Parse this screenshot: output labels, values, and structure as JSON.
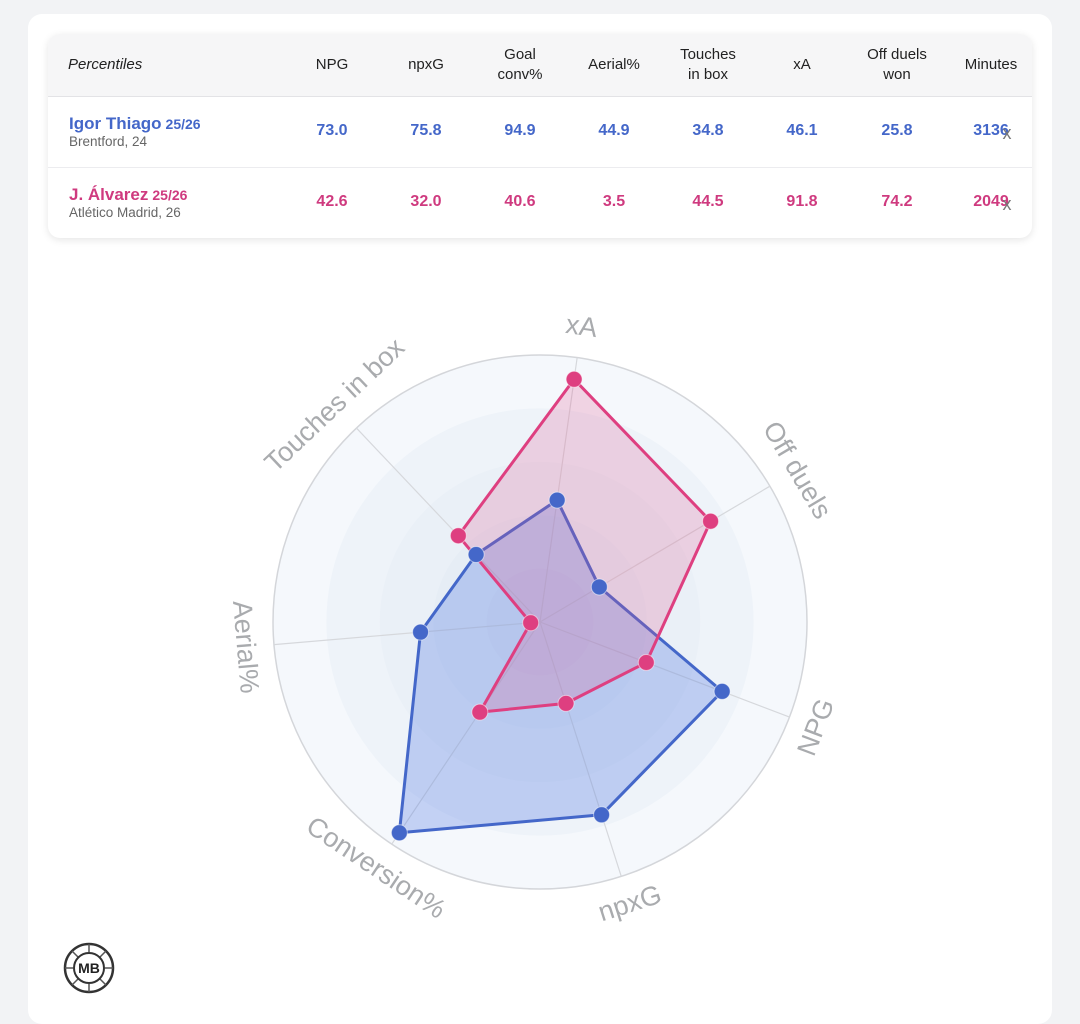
{
  "table": {
    "header_label": "Percentiles",
    "columns": [
      {
        "key": "npg",
        "label_lines": [
          "NPG"
        ]
      },
      {
        "key": "npxg",
        "label_lines": [
          "npxG"
        ]
      },
      {
        "key": "goal_conv",
        "label_lines": [
          "Goal",
          "conv%"
        ]
      },
      {
        "key": "aerial",
        "label_lines": [
          "Aerial%"
        ]
      },
      {
        "key": "touches_box",
        "label_lines": [
          "Touches",
          "in box"
        ]
      },
      {
        "key": "xa",
        "label_lines": [
          "xA"
        ]
      },
      {
        "key": "off_duels",
        "label_lines": [
          "Off duels",
          "won"
        ]
      },
      {
        "key": "minutes",
        "label_lines": [
          "Minutes"
        ]
      }
    ],
    "rows": [
      {
        "name": "Igor Thiago",
        "season": "25/26",
        "meta": "Brentford, 24",
        "color": "#4467c9",
        "values": [
          "73.0",
          "75.8",
          "94.9",
          "44.9",
          "34.8",
          "46.1",
          "25.8",
          "3136"
        ],
        "remove_label": "x"
      },
      {
        "name": "J. Álvarez",
        "season": "25/26",
        "meta": "Atlético Madrid, 26",
        "color": "#cf3a7f",
        "values": [
          "42.6",
          "32.0",
          "40.6",
          "3.5",
          "44.5",
          "91.8",
          "74.2",
          "2049"
        ],
        "remove_label": "x"
      }
    ]
  },
  "chart_data": {
    "type": "radar",
    "axes": [
      "xA",
      "Off duels",
      "NPG",
      "npxG",
      "Conversion%",
      "Aerial%",
      "Touches in box"
    ],
    "range": [
      0,
      100
    ],
    "series": [
      {
        "name": "Igor Thiago",
        "color": "#4467c9",
        "fill": "rgba(80,120,225,0.30)",
        "values": [
          46.1,
          25.8,
          73.0,
          75.8,
          94.9,
          44.9,
          34.8
        ]
      },
      {
        "name": "J. Álvarez",
        "color": "#de3f80",
        "fill": "rgba(222,80,140,0.22)",
        "values": [
          91.8,
          74.2,
          42.6,
          32.0,
          40.6,
          3.5,
          44.5
        ]
      }
    ],
    "grid": true
  },
  "logo": {
    "text": "MB",
    "icon": "ball-logo-icon"
  }
}
